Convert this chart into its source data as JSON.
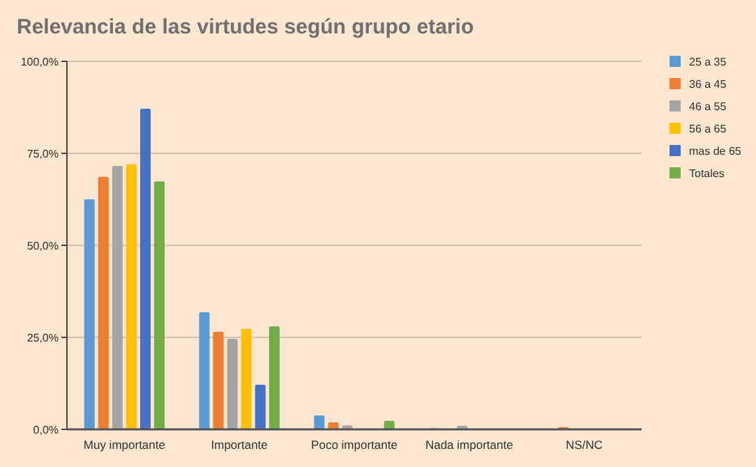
{
  "chart_data": {
    "type": "bar",
    "title": "Relevancia de las virtudes según grupo etario",
    "categories": [
      "Muy importante",
      "Importante",
      "Poco importante",
      "Nada importante",
      "NS/NC"
    ],
    "series": [
      {
        "name": "25 a 35",
        "color": "#5b9bd5",
        "values": [
          62.5,
          31.8,
          3.8,
          0.3,
          0
        ]
      },
      {
        "name": "36 a 45",
        "color": "#ed7d31",
        "values": [
          68.6,
          26.5,
          1.9,
          null,
          0.6
        ]
      },
      {
        "name": "46 a 55",
        "color": "#a5a5a5",
        "values": [
          71.6,
          24.6,
          1.1,
          1.0,
          0
        ]
      },
      {
        "name": "56 a 65",
        "color": "#ffc000",
        "values": [
          72,
          27.3,
          0,
          0,
          0
        ]
      },
      {
        "name": "mas de 65",
        "color": "#4472c4",
        "values": [
          87.1,
          12.1,
          0,
          0,
          0
        ]
      },
      {
        "name": "Totales",
        "color": "#70ad47",
        "values": [
          67.4,
          28,
          2.3,
          null,
          null
        ]
      }
    ],
    "ylim": [
      0,
      100
    ],
    "yticks": [
      {
        "value": 0,
        "label": "0,0%"
      },
      {
        "value": 25,
        "label": "25,0%"
      },
      {
        "value": 50,
        "label": "50,0%"
      },
      {
        "value": 75,
        "label": "75,0%"
      },
      {
        "value": 100,
        "label": "100,0%"
      }
    ],
    "grid": "y",
    "legend": "right"
  }
}
